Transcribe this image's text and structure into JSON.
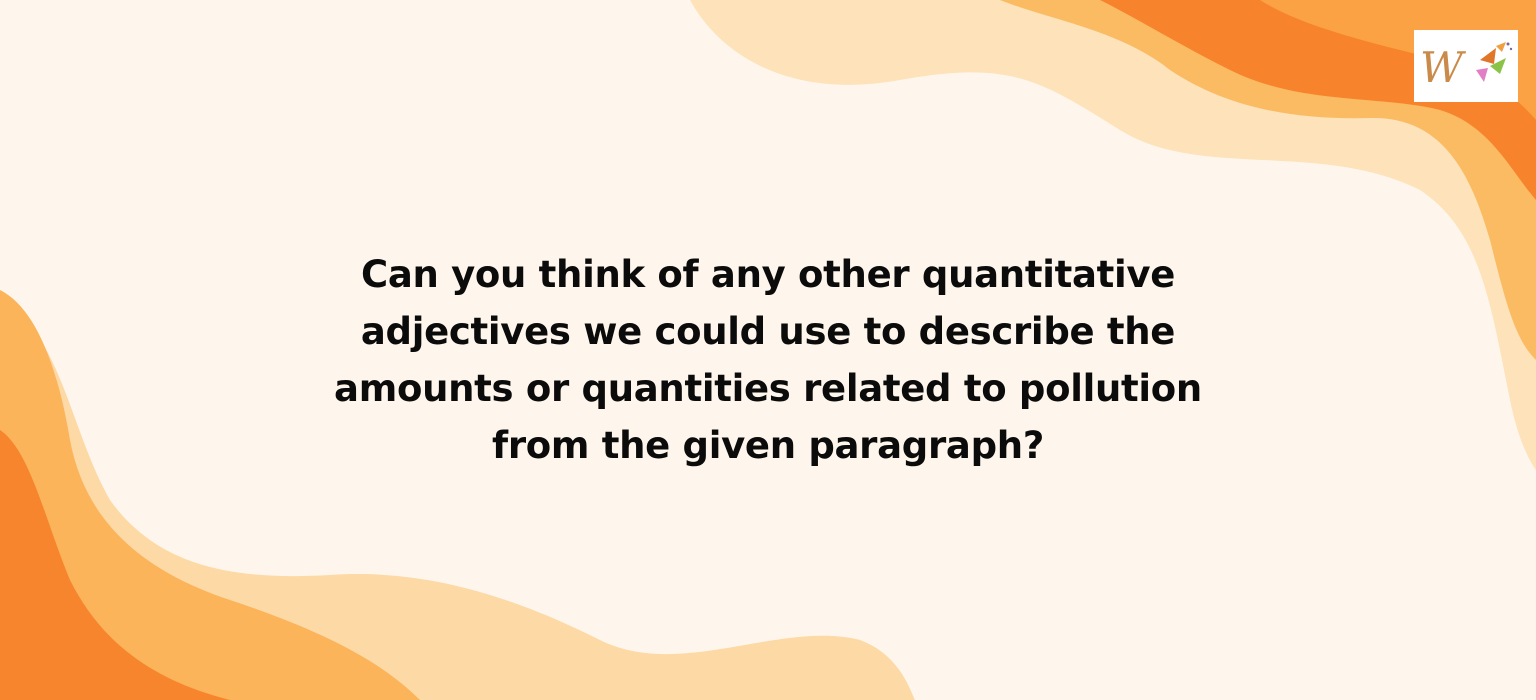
{
  "question": {
    "lines": [
      "Can you think of any other quantitative",
      "adjectives we could use to describe the",
      "amounts or quantities related to pollution",
      "from the given paragraph?"
    ]
  },
  "logo": {
    "icon": "w-brand-logo-icon",
    "letter": "W"
  },
  "colors": {
    "background": "#fef6ec",
    "wave_light": "#fcd8a0",
    "wave_mid": "#fbb457",
    "wave_dark": "#f7812a",
    "text": "#0b0b0b"
  }
}
